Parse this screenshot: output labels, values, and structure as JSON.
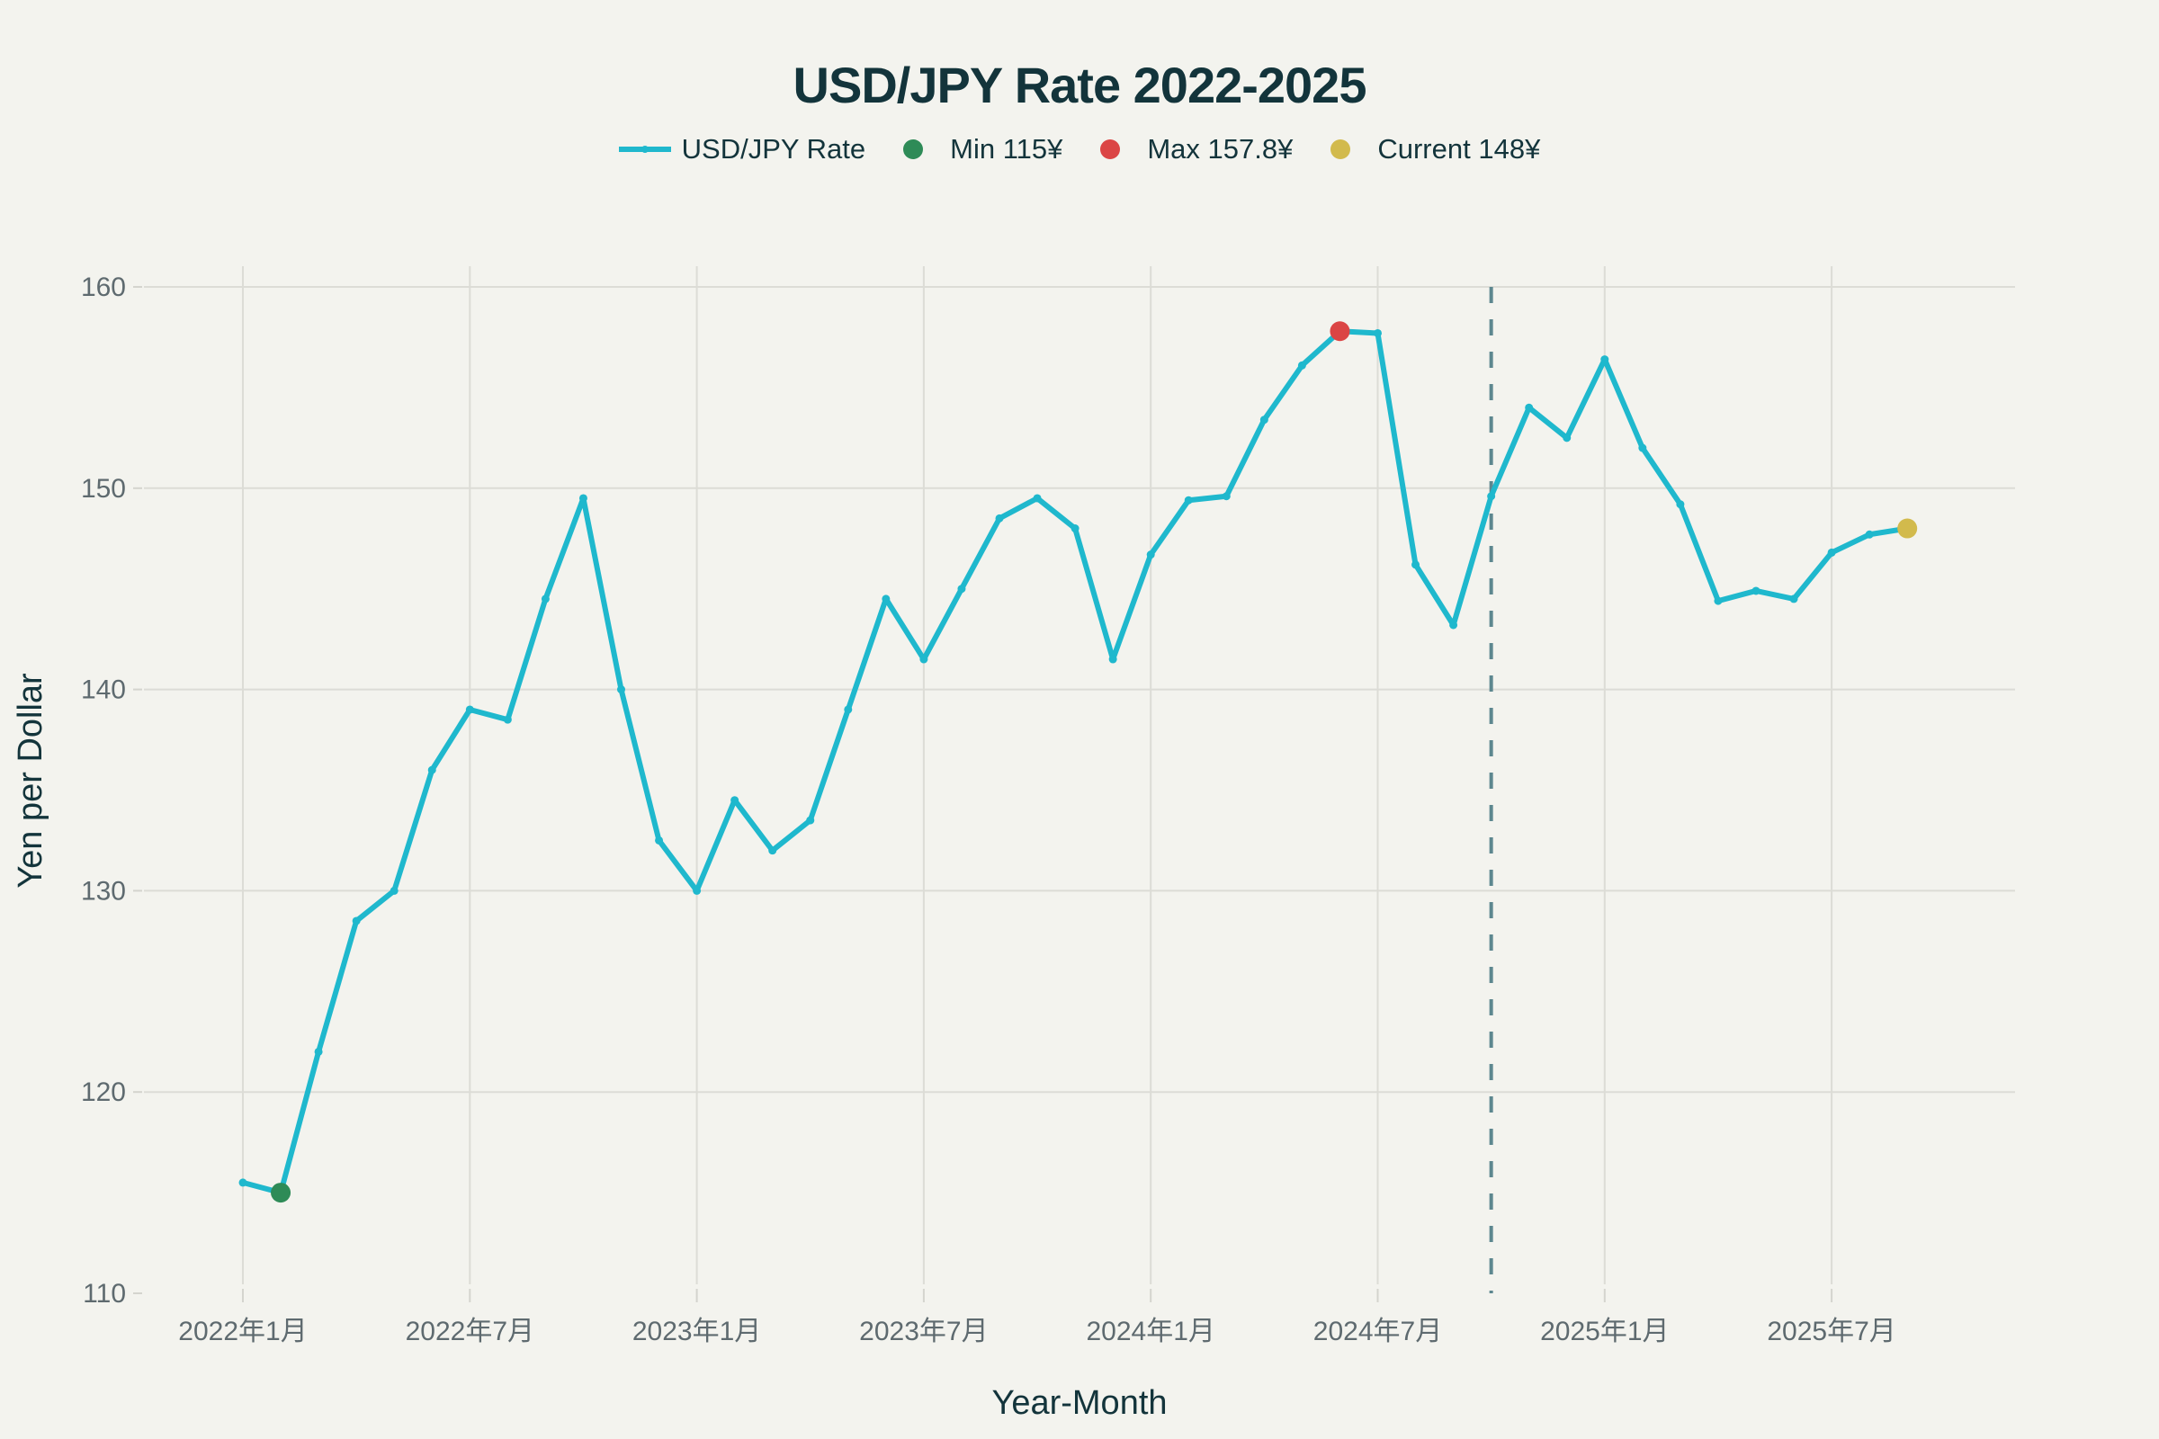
{
  "chart_data": {
    "type": "line",
    "title": "USD/JPY Rate 2022-2025",
    "xlabel": "Year-Month",
    "ylabel": "Yen per Dollar",
    "ylim": [
      110,
      160
    ],
    "yticks": [
      110,
      120,
      130,
      140,
      150,
      160
    ],
    "xticks": [
      {
        "month_index": 0,
        "label": "2022年1月"
      },
      {
        "month_index": 6,
        "label": "2022年7月"
      },
      {
        "month_index": 12,
        "label": "2023年1月"
      },
      {
        "month_index": 18,
        "label": "2023年7月"
      },
      {
        "month_index": 24,
        "label": "2024年1月"
      },
      {
        "month_index": 30,
        "label": "2024年7月"
      },
      {
        "month_index": 36,
        "label": "2025年1月"
      },
      {
        "month_index": 42,
        "label": "2025年7月"
      }
    ],
    "x_range_months": [
      -2.2,
      46.1
    ],
    "grid": true,
    "legend_position": "top-center",
    "legend": [
      {
        "name": "USD/JPY Rate",
        "kind": "line",
        "color": "#1fb8cd"
      },
      {
        "name": "Min 115¥",
        "kind": "marker",
        "color": "#2e8b57"
      },
      {
        "name": "Max 157.8¥",
        "kind": "marker",
        "color": "#db4545"
      },
      {
        "name": "Current 148¥",
        "kind": "marker",
        "color": "#d2ba4c"
      }
    ],
    "series": [
      {
        "name": "USD/JPY Rate",
        "color": "#1fb8cd",
        "x": [
          "2022-01",
          "2022-02",
          "2022-03",
          "2022-04",
          "2022-05",
          "2022-06",
          "2022-07",
          "2022-08",
          "2022-09",
          "2022-10",
          "2022-11",
          "2022-12",
          "2023-01",
          "2023-02",
          "2023-03",
          "2023-04",
          "2023-05",
          "2023-06",
          "2023-07",
          "2023-08",
          "2023-09",
          "2023-10",
          "2023-11",
          "2023-12",
          "2024-01",
          "2024-02",
          "2024-03",
          "2024-04",
          "2024-05",
          "2024-06",
          "2024-07",
          "2024-08",
          "2024-09",
          "2024-10",
          "2024-11",
          "2024-12",
          "2025-01",
          "2025-02",
          "2025-03",
          "2025-04",
          "2025-05",
          "2025-06",
          "2025-07",
          "2025-08",
          "2025-09"
        ],
        "values": [
          115.5,
          115.0,
          122.0,
          128.5,
          130.0,
          136.0,
          139.0,
          138.5,
          144.5,
          149.5,
          140.0,
          132.5,
          130.0,
          134.5,
          132.0,
          133.5,
          139.0,
          144.5,
          141.5,
          145.0,
          148.5,
          149.5,
          148.0,
          141.5,
          146.7,
          149.4,
          149.6,
          153.4,
          156.1,
          157.8,
          157.7,
          146.2,
          143.2,
          149.6,
          154.0,
          152.5,
          156.4,
          152.0,
          149.2,
          144.4,
          144.9,
          144.5,
          146.8,
          147.7,
          148.0
        ]
      }
    ],
    "highlights": [
      {
        "name": "Min 115¥",
        "x": "2022-02",
        "month_index": 1,
        "value": 115.0,
        "color": "#2e8b57"
      },
      {
        "name": "Max 157.8¥",
        "x": "2024-06",
        "month_index": 29,
        "value": 157.8,
        "color": "#db4545"
      },
      {
        "name": "Current 148¥",
        "x": "2025-09",
        "month_index": 44,
        "value": 148.0,
        "color": "#d2ba4c"
      }
    ],
    "reference_line": {
      "type": "vertical-dashed",
      "x": "2024-10",
      "month_index": 33,
      "color": "#5d878f"
    }
  }
}
